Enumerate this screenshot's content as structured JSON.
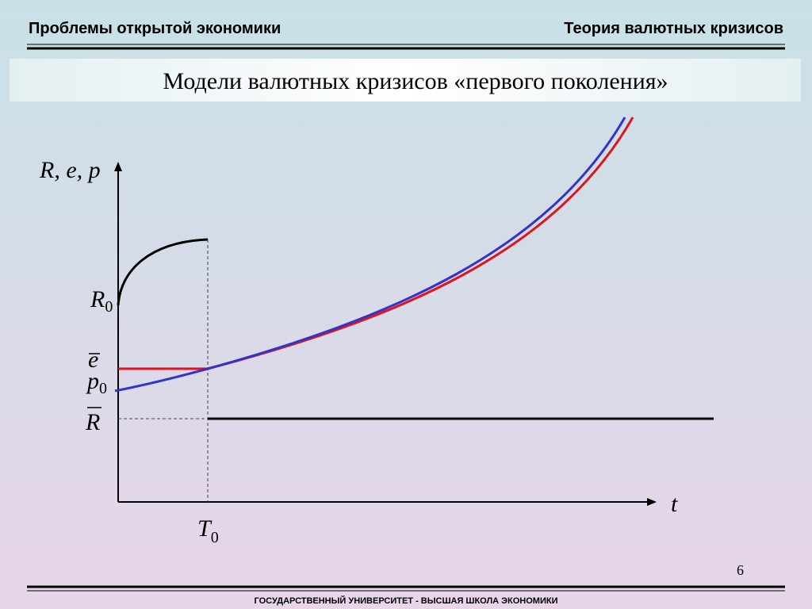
{
  "header": {
    "left": "Проблемы открытой экономики",
    "right": "Теория валютных кризисов"
  },
  "title": "Модели валютных кризисов «первого поколения»",
  "diagram": {
    "y_axis_label": "R, e, p",
    "x_axis_label": "t",
    "labels": [
      {
        "text": "R",
        "sub": "0"
      },
      {
        "text": "e"
      },
      {
        "text": "p",
        "sub": "0"
      },
      {
        "text": "R"
      },
      {
        "text": "T",
        "sub": "0"
      }
    ]
  },
  "page_number": "6",
  "footer": "ГОСУДАРСТВЕННЫЙ УНИВЕРСИТЕТ - ВЫСШАЯ ШКОЛА ЭКОНОМИКИ"
}
